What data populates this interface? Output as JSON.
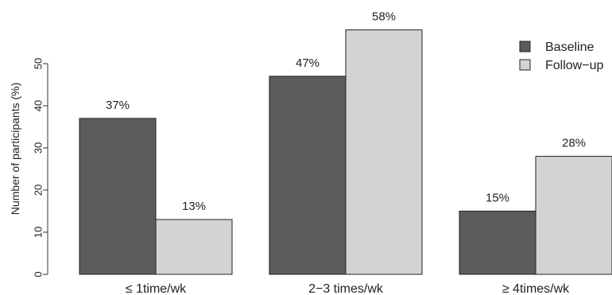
{
  "chart_data": {
    "type": "bar",
    "ylabel": "Number of participants (%)",
    "ylim": [
      0,
      60
    ],
    "yticks": [
      0,
      10,
      20,
      30,
      40,
      50
    ],
    "categories": [
      "≤ 1time/wk",
      "2−3 times/wk",
      "≥ 4times/wk"
    ],
    "series": [
      {
        "name": "Baseline",
        "values": [
          37,
          47,
          15
        ],
        "labels": [
          "37%",
          "47%",
          "15%"
        ],
        "color": "#5c5c5c"
      },
      {
        "name": "Follow−up",
        "values": [
          13,
          58,
          28
        ],
        "labels": [
          "13%",
          "58%",
          "28%"
        ],
        "color": "#d3d3d5"
      }
    ],
    "legend_position": "top-right",
    "grid": false
  }
}
